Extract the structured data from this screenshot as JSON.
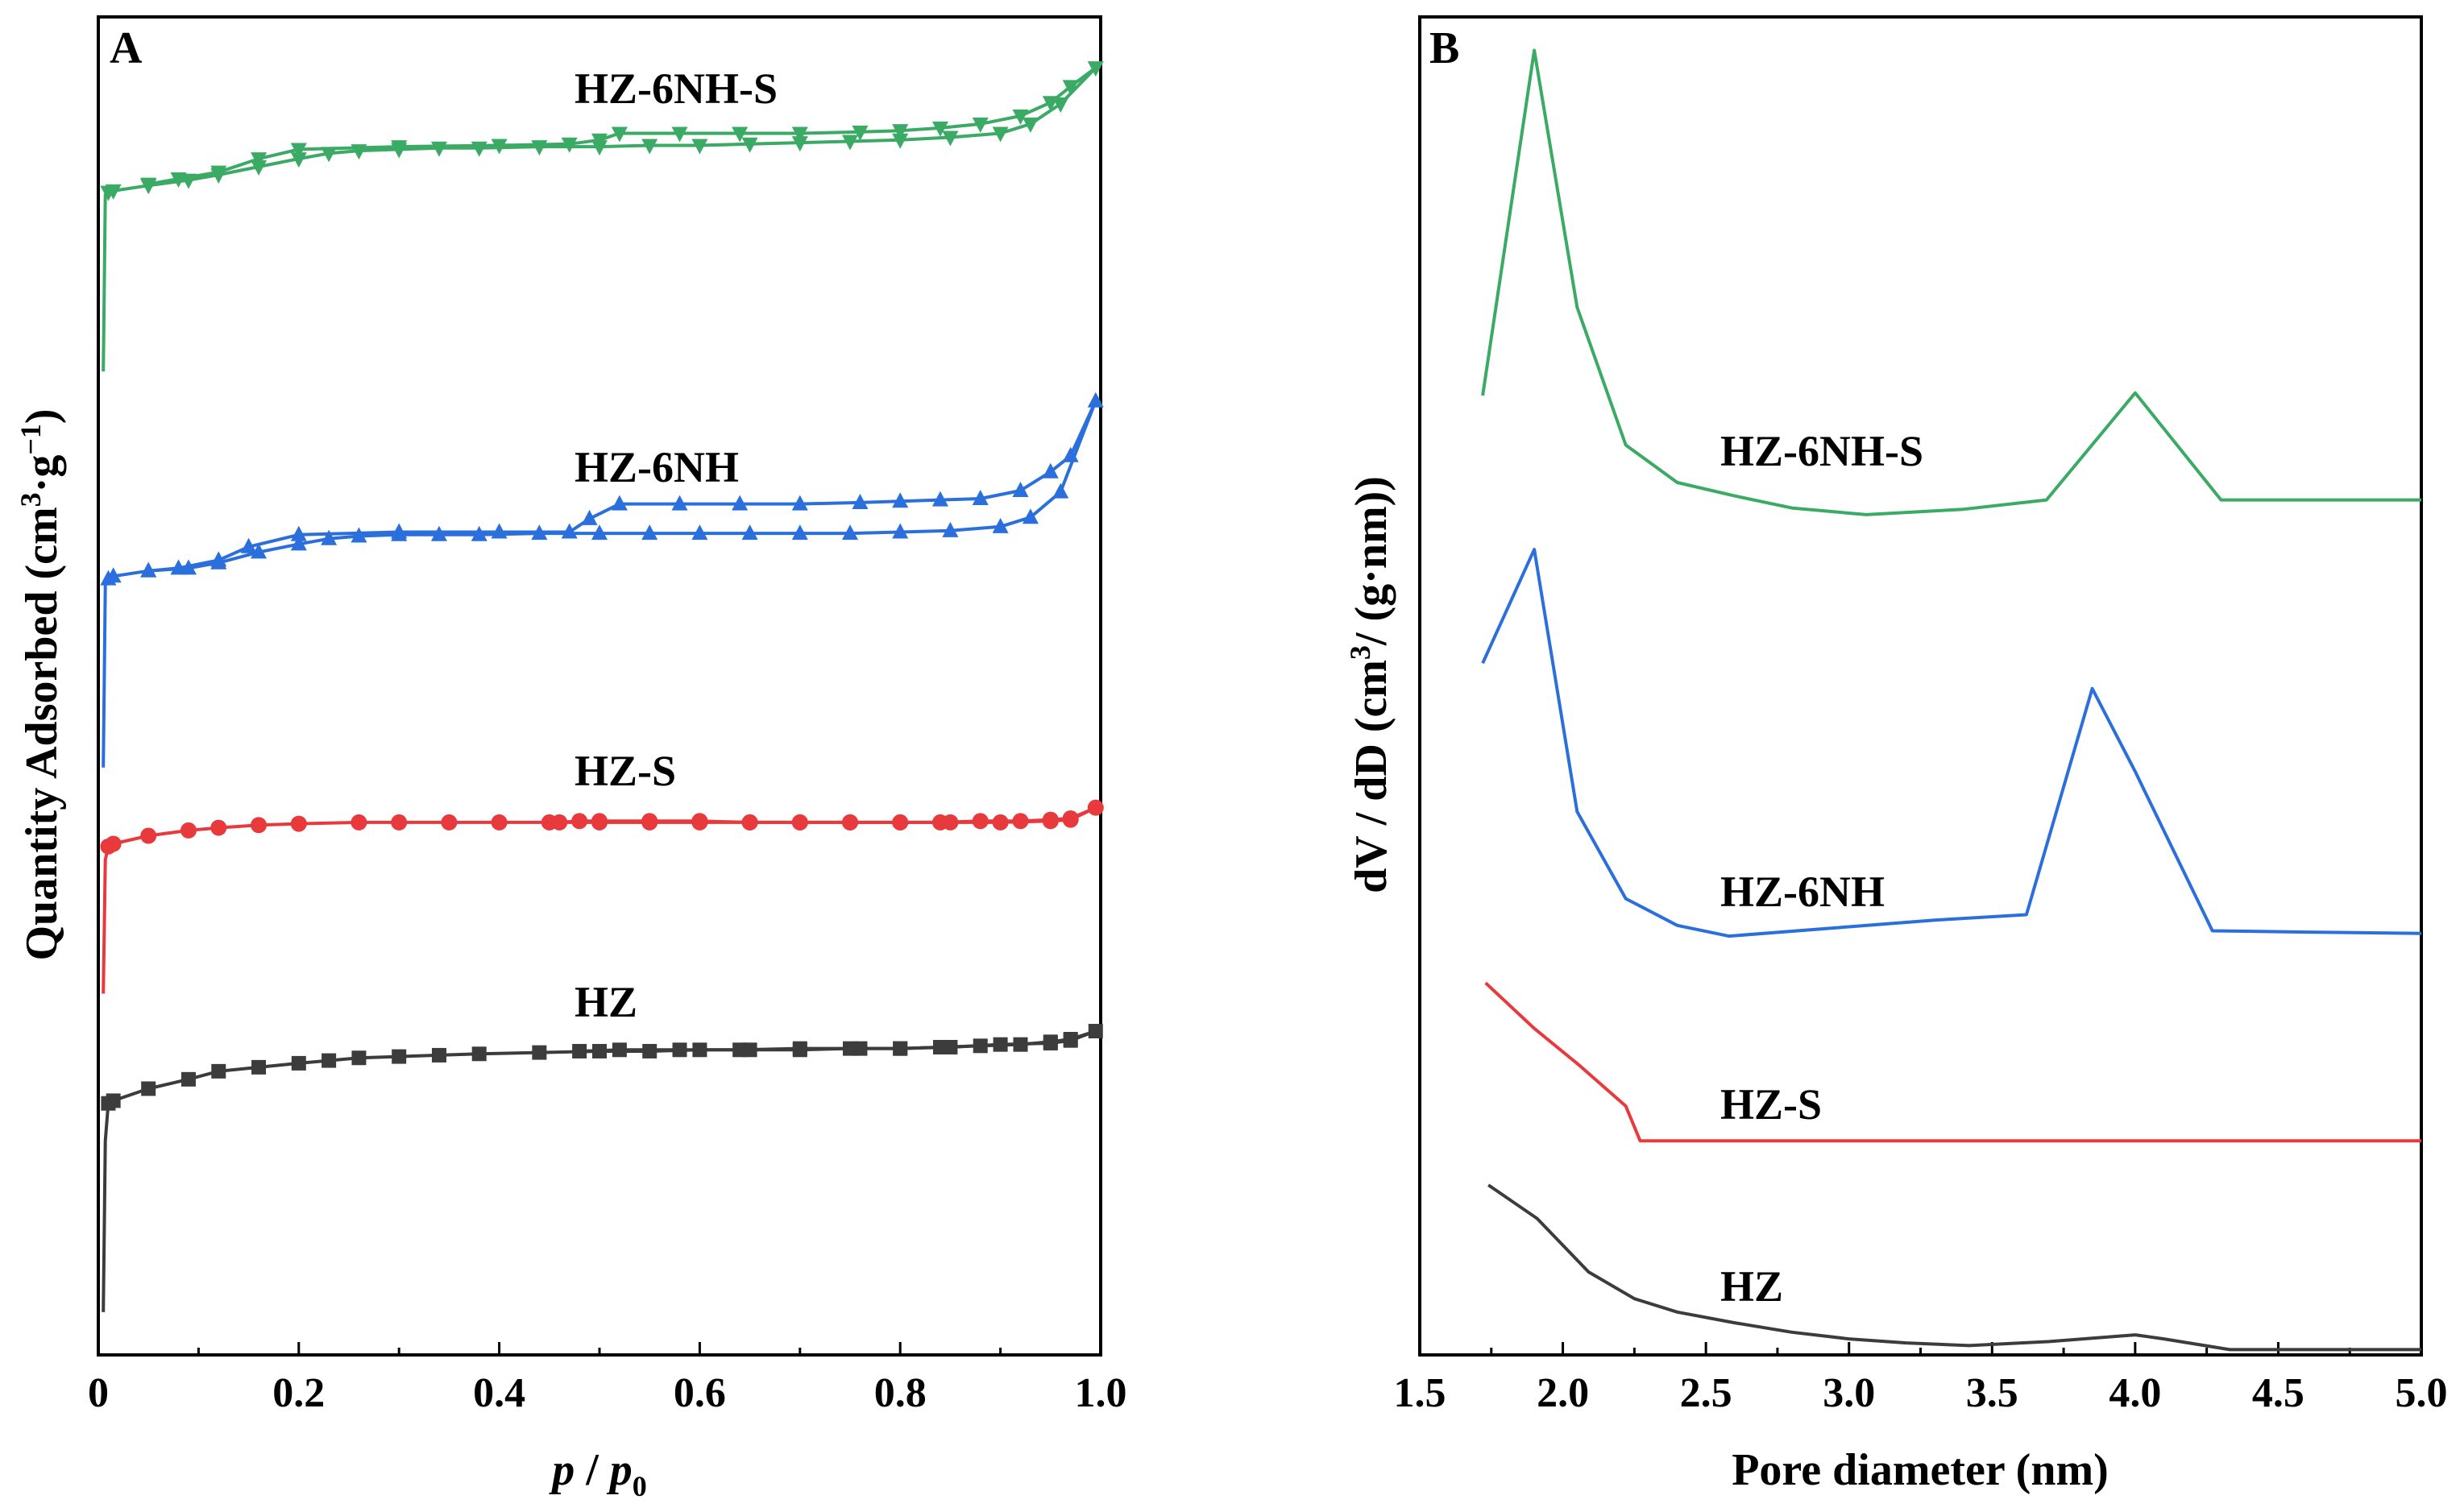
{
  "chart_data": [
    {
      "panel": "A",
      "type": "line",
      "xlabel": "p / p0",
      "xlabel_parts": {
        "p": "p",
        "slash": " / ",
        "p0": "p",
        "sub": "0"
      },
      "ylabel": "Quantity Adsorbed (cm³·g⁻¹)",
      "ylabel_parts": {
        "main": "Quantity Adsorbed ",
        "unit_open": "(cm",
        "sup3": "3",
        "dot_g": "·g",
        "sup_neg1": "−1",
        "unit_close": ")"
      },
      "xlim": [
        0,
        1.0
      ],
      "ylim": [
        0,
        100
      ],
      "xticks": [
        "0",
        "0.2",
        "0.4",
        "0.6",
        "0.8",
        "1.0"
      ],
      "xtick_values": [
        0,
        0.2,
        0.4,
        0.6,
        0.8,
        1.0
      ],
      "y_ticks_shown": false,
      "series": [
        {
          "name": "HZ",
          "color": "#3c3c3c",
          "marker": "square",
          "adsorption": [
            [
              0.005,
              3.2
            ],
            [
              0.007,
              16
            ],
            [
              0.01,
              18.8
            ],
            [
              0.015,
              19.0
            ],
            [
              0.05,
              19.9
            ],
            [
              0.09,
              20.6
            ],
            [
              0.12,
              21.2
            ],
            [
              0.16,
              21.5
            ],
            [
              0.2,
              21.8
            ],
            [
              0.23,
              22.0
            ],
            [
              0.26,
              22.2
            ],
            [
              0.3,
              22.3
            ],
            [
              0.34,
              22.4
            ],
            [
              0.38,
              22.5
            ],
            [
              0.44,
              22.6
            ],
            [
              0.5,
              22.7
            ],
            [
              0.55,
              22.7
            ],
            [
              0.6,
              22.8
            ],
            [
              0.65,
              22.8
            ],
            [
              0.7,
              22.8
            ],
            [
              0.75,
              22.9
            ],
            [
              0.8,
              22.9
            ],
            [
              0.85,
              23.0
            ],
            [
              0.9,
              23.2
            ],
            [
              0.95,
              23.3
            ],
            [
              0.97,
              23.5
            ],
            [
              0.995,
              24.2
            ]
          ],
          "desorption": [
            [
              0.995,
              24.2
            ],
            [
              0.97,
              23.6
            ],
            [
              0.95,
              23.4
            ],
            [
              0.92,
              23.2
            ],
            [
              0.88,
              23.1
            ],
            [
              0.84,
              23.0
            ],
            [
              0.8,
              22.9
            ],
            [
              0.76,
              22.9
            ],
            [
              0.7,
              22.9
            ],
            [
              0.64,
              22.8
            ],
            [
              0.58,
              22.8
            ],
            [
              0.52,
              22.8
            ],
            [
              0.48,
              22.7
            ]
          ]
        },
        {
          "name": "HZ-S",
          "color": "#e8393c",
          "marker": "circle",
          "adsorption": [
            [
              0.005,
              27
            ],
            [
              0.007,
              37
            ],
            [
              0.01,
              38
            ],
            [
              0.015,
              38.2
            ],
            [
              0.05,
              38.8
            ],
            [
              0.09,
              39.2
            ],
            [
              0.12,
              39.4
            ],
            [
              0.16,
              39.6
            ],
            [
              0.2,
              39.7
            ],
            [
              0.26,
              39.8
            ],
            [
              0.3,
              39.8
            ],
            [
              0.35,
              39.8
            ],
            [
              0.4,
              39.8
            ],
            [
              0.45,
              39.8
            ],
            [
              0.5,
              39.8
            ],
            [
              0.55,
              39.8
            ],
            [
              0.6,
              39.8
            ],
            [
              0.65,
              39.8
            ],
            [
              0.7,
              39.8
            ],
            [
              0.75,
              39.8
            ],
            [
              0.8,
              39.8
            ],
            [
              0.85,
              39.8
            ],
            [
              0.9,
              39.8
            ],
            [
              0.95,
              39.9
            ],
            [
              0.97,
              40.0
            ],
            [
              0.995,
              40.9
            ]
          ],
          "desorption": [
            [
              0.995,
              40.9
            ],
            [
              0.97,
              40.1
            ],
            [
              0.95,
              40.0
            ],
            [
              0.92,
              39.9
            ],
            [
              0.88,
              39.9
            ],
            [
              0.84,
              39.8
            ],
            [
              0.8,
              39.8
            ],
            [
              0.75,
              39.8
            ],
            [
              0.7,
              39.8
            ],
            [
              0.65,
              39.8
            ],
            [
              0.6,
              39.9
            ],
            [
              0.55,
              39.9
            ],
            [
              0.5,
              39.9
            ],
            [
              0.48,
              39.9
            ],
            [
              0.46,
              39.8
            ]
          ]
        },
        {
          "name": "HZ-6NH",
          "color": "#2a6fdb",
          "marker": "triangle-up",
          "adsorption": [
            [
              0.005,
              43.9
            ],
            [
              0.007,
              57.5
            ],
            [
              0.01,
              58.0
            ],
            [
              0.015,
              58.2
            ],
            [
              0.05,
              58.6
            ],
            [
              0.09,
              58.8
            ],
            [
              0.12,
              59.2
            ],
            [
              0.16,
              60.0
            ],
            [
              0.2,
              60.6
            ],
            [
              0.23,
              61.0
            ],
            [
              0.26,
              61.2
            ],
            [
              0.3,
              61.3
            ],
            [
              0.34,
              61.3
            ],
            [
              0.38,
              61.3
            ],
            [
              0.44,
              61.4
            ],
            [
              0.5,
              61.4
            ],
            [
              0.55,
              61.4
            ],
            [
              0.6,
              61.4
            ],
            [
              0.65,
              61.4
            ],
            [
              0.7,
              61.4
            ],
            [
              0.75,
              61.4
            ],
            [
              0.8,
              61.5
            ],
            [
              0.85,
              61.6
            ],
            [
              0.9,
              61.9
            ],
            [
              0.93,
              62.6
            ],
            [
              0.96,
              64.5
            ],
            [
              0.995,
              71.3
            ]
          ],
          "desorption": [
            [
              0.995,
              71.3
            ],
            [
              0.97,
              67.2
            ],
            [
              0.95,
              66.0
            ],
            [
              0.92,
              64.6
            ],
            [
              0.88,
              64.0
            ],
            [
              0.84,
              63.9
            ],
            [
              0.8,
              63.8
            ],
            [
              0.76,
              63.7
            ],
            [
              0.7,
              63.6
            ],
            [
              0.64,
              63.6
            ],
            [
              0.58,
              63.6
            ],
            [
              0.52,
              63.6
            ],
            [
              0.49,
              62.5
            ],
            [
              0.47,
              61.5
            ],
            [
              0.4,
              61.5
            ],
            [
              0.3,
              61.5
            ],
            [
              0.2,
              61.3
            ],
            [
              0.15,
              60.4
            ],
            [
              0.12,
              59.4
            ],
            [
              0.08,
              58.8
            ],
            [
              0.05,
              58.6
            ]
          ]
        },
        {
          "name": "HZ-6NH-S",
          "color": "#3aaa64",
          "marker": "triangle-down",
          "adsorption": [
            [
              0.005,
              73.5
            ],
            [
              0.007,
              86.7
            ],
            [
              0.01,
              86.9
            ],
            [
              0.015,
              87.0
            ],
            [
              0.05,
              87.4
            ],
            [
              0.09,
              87.8
            ],
            [
              0.12,
              88.2
            ],
            [
              0.16,
              88.8
            ],
            [
              0.2,
              89.4
            ],
            [
              0.23,
              89.8
            ],
            [
              0.26,
              90.0
            ],
            [
              0.3,
              90.1
            ],
            [
              0.34,
              90.2
            ],
            [
              0.38,
              90.2
            ],
            [
              0.44,
              90.3
            ],
            [
              0.5,
              90.3
            ],
            [
              0.55,
              90.4
            ],
            [
              0.6,
              90.4
            ],
            [
              0.65,
              90.5
            ],
            [
              0.7,
              90.6
            ],
            [
              0.75,
              90.7
            ],
            [
              0.8,
              90.8
            ],
            [
              0.85,
              91.0
            ],
            [
              0.9,
              91.3
            ],
            [
              0.93,
              92.0
            ],
            [
              0.96,
              93.5
            ],
            [
              0.995,
              96.2
            ]
          ],
          "desorption": [
            [
              0.995,
              96.2
            ],
            [
              0.97,
              94.8
            ],
            [
              0.95,
              93.6
            ],
            [
              0.92,
              92.6
            ],
            [
              0.88,
              92.0
            ],
            [
              0.84,
              91.7
            ],
            [
              0.8,
              91.5
            ],
            [
              0.76,
              91.4
            ],
            [
              0.7,
              91.3
            ],
            [
              0.64,
              91.3
            ],
            [
              0.58,
              91.3
            ],
            [
              0.52,
              91.3
            ],
            [
              0.5,
              90.8
            ],
            [
              0.47,
              90.5
            ],
            [
              0.4,
              90.4
            ],
            [
              0.3,
              90.3
            ],
            [
              0.2,
              90.1
            ],
            [
              0.16,
              89.4
            ],
            [
              0.12,
              88.4
            ],
            [
              0.08,
              87.9
            ],
            [
              0.05,
              87.5
            ]
          ]
        }
      ]
    },
    {
      "panel": "B",
      "type": "line",
      "xlabel": "Pore diameter (nm)",
      "ylabel": "dV / dD (cm³/ (g·nm))",
      "ylabel_parts": {
        "main": "dV / dD (cm",
        "sup3": "3",
        "rest": "/ (g·nm))"
      },
      "xlim": [
        1.5,
        5.0
      ],
      "ylim": [
        0,
        100
      ],
      "xticks": [
        "1.5",
        "2.0",
        "2.5",
        "3.0",
        "3.5",
        "4.0",
        "4.5",
        "5.0"
      ],
      "xtick_values": [
        1.5,
        2.0,
        2.5,
        3.0,
        3.5,
        4.0,
        4.5,
        5.0
      ],
      "y_ticks_shown": false,
      "series": [
        {
          "name": "HZ",
          "color": "#3c3c3c",
          "points": [
            [
              1.74,
              12.7
            ],
            [
              1.91,
              10.2
            ],
            [
              2.09,
              6.2
            ],
            [
              2.25,
              4.2
            ],
            [
              2.4,
              3.2
            ],
            [
              2.6,
              2.4
            ],
            [
              2.8,
              1.7
            ],
            [
              3.0,
              1.2
            ],
            [
              3.2,
              0.9
            ],
            [
              3.42,
              0.7
            ],
            [
              3.7,
              1.0
            ],
            [
              4.0,
              1.5
            ],
            [
              4.1,
              1.2
            ],
            [
              4.33,
              0.4
            ],
            [
              4.6,
              0.4
            ],
            [
              5.0,
              0.4
            ]
          ]
        },
        {
          "name": "HZ-S",
          "color": "#e8393c",
          "points": [
            [
              1.73,
              27.8
            ],
            [
              1.9,
              24.4
            ],
            [
              2.06,
              21.6
            ],
            [
              2.22,
              18.6
            ],
            [
              2.27,
              16.0
            ],
            [
              3.0,
              16.0
            ],
            [
              4.0,
              16.0
            ],
            [
              5.0,
              16.0
            ]
          ]
        },
        {
          "name": "HZ-6NH",
          "color": "#2a6fdb",
          "points": [
            [
              1.72,
              51.7
            ],
            [
              1.9,
              60.2
            ],
            [
              2.05,
              40.6
            ],
            [
              2.22,
              34.1
            ],
            [
              2.4,
              32.1
            ],
            [
              2.58,
              31.3
            ],
            [
              3.0,
              32.0
            ],
            [
              3.3,
              32.5
            ],
            [
              3.62,
              32.9
            ],
            [
              3.85,
              49.8
            ],
            [
              4.0,
              43.6
            ],
            [
              4.27,
              31.7
            ],
            [
              4.6,
              31.6
            ],
            [
              5.0,
              31.5
            ]
          ]
        },
        {
          "name": "HZ-6NH-S",
          "color": "#3aaa64",
          "points": [
            [
              1.72,
              71.7
            ],
            [
              1.9,
              97.5
            ],
            [
              2.05,
              78.3
            ],
            [
              2.22,
              68.0
            ],
            [
              2.4,
              65.2
            ],
            [
              2.6,
              64.2
            ],
            [
              2.8,
              63.3
            ],
            [
              3.06,
              62.8
            ],
            [
              3.4,
              63.2
            ],
            [
              3.69,
              63.9
            ],
            [
              4.0,
              71.9
            ],
            [
              4.3,
              63.9
            ],
            [
              4.6,
              63.9
            ],
            [
              5.0,
              63.9
            ]
          ]
        }
      ]
    }
  ],
  "labels": {
    "panel_a": "A",
    "panel_b": "B",
    "a_hz": "HZ",
    "a_hzs": "HZ-S",
    "a_hz6nh": "HZ-6NH",
    "a_hz6nhs": "HZ-6NH-S",
    "b_hz": "HZ",
    "b_hzs": "HZ-S",
    "b_hz6nh": "HZ-6NH",
    "b_hz6nhs": "HZ-6NH-S",
    "xtitle_b": "Pore diameter (nm)"
  }
}
